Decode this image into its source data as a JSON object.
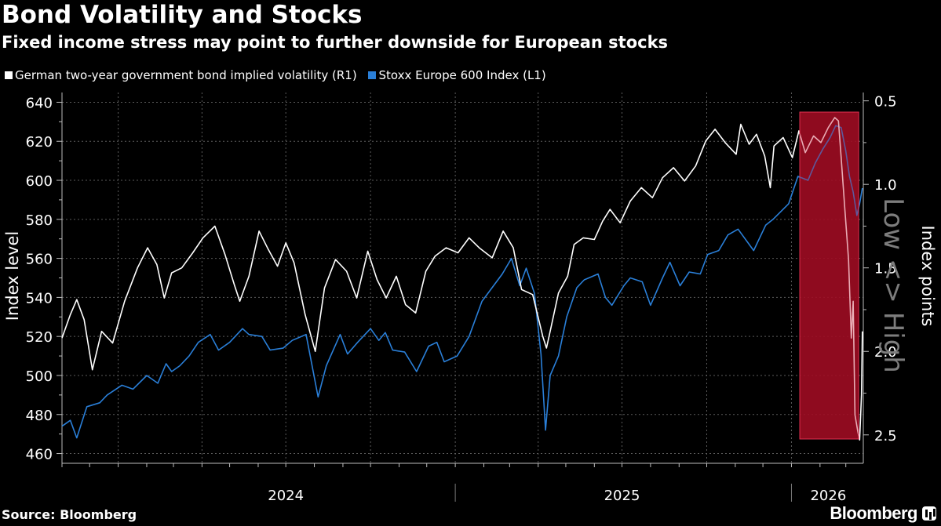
{
  "header": {
    "title": "Bond Volatility and Stocks",
    "subtitle": "Fixed income stress may point to further downside for European stocks"
  },
  "legend": {
    "items": [
      {
        "label": "German two-year government bond implied volatility (R1)",
        "color": "#ffffff"
      },
      {
        "label": "Stoxx Europe 600 Index (L1)",
        "color": "#2a7fd8"
      }
    ]
  },
  "footer": {
    "source": "Source: Bloomberg",
    "brand": "Bloomberg"
  },
  "chart_data": {
    "type": "line",
    "y_left": {
      "label": "Index level",
      "range": [
        455,
        645
      ],
      "ticks": [
        460,
        480,
        500,
        520,
        540,
        560,
        580,
        600,
        620,
        640
      ]
    },
    "y_right": {
      "label": "Index points",
      "annotation": "Low <> High",
      "inverted": true,
      "range": [
        0.45,
        2.67
      ],
      "ticks": [
        0.5,
        1.0,
        1.5,
        2.0,
        2.5
      ],
      "tick_labels": [
        "0.5",
        "1.0",
        "1.5",
        "2.0",
        "2.5"
      ]
    },
    "x": {
      "range": [
        "2023-11-01",
        "2026-03-20"
      ],
      "year_labels": [
        "2024",
        "2025",
        "2026"
      ],
      "year_label_positions": [
        "2024-07-01",
        "2025-07-01",
        "2026-02-10"
      ],
      "year_boundaries": [
        "2025-01-01",
        "2026-01-01"
      ]
    },
    "grid": true,
    "highlight": {
      "start": "2026-01-10",
      "end": "2026-03-15",
      "color": "#8b0a1e"
    },
    "series": [
      {
        "name": "Stoxx Europe 600 Index (L1)",
        "axis": "left",
        "color": "#2a7fd8",
        "points": [
          [
            "2023-11-01",
            474
          ],
          [
            "2023-11-10",
            477
          ],
          [
            "2023-11-17",
            468
          ],
          [
            "2023-11-28",
            484
          ],
          [
            "2023-12-12",
            486
          ],
          [
            "2023-12-20",
            490
          ],
          [
            "2024-01-05",
            495
          ],
          [
            "2024-01-17",
            493
          ],
          [
            "2024-02-01",
            500
          ],
          [
            "2024-02-13",
            496
          ],
          [
            "2024-02-22",
            506
          ],
          [
            "2024-02-28",
            502
          ],
          [
            "2024-03-08",
            505
          ],
          [
            "2024-03-18",
            510
          ],
          [
            "2024-03-28",
            517
          ],
          [
            "2024-04-10",
            521
          ],
          [
            "2024-04-19",
            513
          ],
          [
            "2024-05-01",
            517
          ],
          [
            "2024-05-15",
            524
          ],
          [
            "2024-05-22",
            521
          ],
          [
            "2024-06-05",
            520
          ],
          [
            "2024-06-14",
            513
          ],
          [
            "2024-06-28",
            514
          ],
          [
            "2024-07-08",
            518
          ],
          [
            "2024-07-23",
            521
          ],
          [
            "2024-08-05",
            489
          ],
          [
            "2024-08-14",
            505
          ],
          [
            "2024-08-29",
            521
          ],
          [
            "2024-09-06",
            511
          ],
          [
            "2024-09-17",
            517
          ],
          [
            "2024-10-01",
            524
          ],
          [
            "2024-10-10",
            518
          ],
          [
            "2024-10-17",
            522
          ],
          [
            "2024-10-25",
            513
          ],
          [
            "2024-11-07",
            512
          ],
          [
            "2024-11-20",
            502
          ],
          [
            "2024-12-03",
            515
          ],
          [
            "2024-12-12",
            517
          ],
          [
            "2024-12-20",
            507
          ],
          [
            "2025-01-03",
            510
          ],
          [
            "2025-01-16",
            520
          ],
          [
            "2025-01-30",
            538
          ],
          [
            "2025-02-10",
            545
          ],
          [
            "2025-02-21",
            552
          ],
          [
            "2025-03-03",
            560
          ],
          [
            "2025-03-12",
            546
          ],
          [
            "2025-03-19",
            555
          ],
          [
            "2025-03-28",
            542
          ],
          [
            "2025-04-04",
            511
          ],
          [
            "2025-04-09",
            472
          ],
          [
            "2025-04-14",
            500
          ],
          [
            "2025-04-23",
            510
          ],
          [
            "2025-05-02",
            530
          ],
          [
            "2025-05-13",
            545
          ],
          [
            "2025-05-21",
            549
          ],
          [
            "2025-06-05",
            552
          ],
          [
            "2025-06-13",
            540
          ],
          [
            "2025-06-20",
            536
          ],
          [
            "2025-07-03",
            546
          ],
          [
            "2025-07-10",
            550
          ],
          [
            "2025-07-23",
            548
          ],
          [
            "2025-08-01",
            536
          ],
          [
            "2025-08-14",
            550
          ],
          [
            "2025-08-22",
            558
          ],
          [
            "2025-09-02",
            546
          ],
          [
            "2025-09-12",
            553
          ],
          [
            "2025-09-24",
            552
          ],
          [
            "2025-10-02",
            562
          ],
          [
            "2025-10-14",
            564
          ],
          [
            "2025-10-24",
            572
          ],
          [
            "2025-11-04",
            575
          ],
          [
            "2025-11-21",
            564
          ],
          [
            "2025-12-04",
            577
          ],
          [
            "2025-12-12",
            580
          ],
          [
            "2025-12-29",
            588
          ],
          [
            "2026-01-08",
            602
          ],
          [
            "2026-01-19",
            600
          ],
          [
            "2026-01-27",
            609
          ],
          [
            "2026-02-04",
            616
          ],
          [
            "2026-02-12",
            622
          ],
          [
            "2026-02-18",
            628
          ],
          [
            "2026-02-24",
            627
          ],
          [
            "2026-03-01",
            615
          ],
          [
            "2026-03-05",
            602
          ],
          [
            "2026-03-09",
            594
          ],
          [
            "2026-03-13",
            582
          ],
          [
            "2026-03-16",
            588
          ],
          [
            "2026-03-19",
            596
          ]
        ]
      },
      {
        "name": "German two-year government bond implied volatility (R1)",
        "axis": "right",
        "color": "#ffffff",
        "points": [
          [
            "2023-11-01",
            1.92
          ],
          [
            "2023-11-10",
            1.78
          ],
          [
            "2023-11-17",
            1.69
          ],
          [
            "2023-11-25",
            1.81
          ],
          [
            "2023-12-04",
            2.11
          ],
          [
            "2023-12-14",
            1.88
          ],
          [
            "2023-12-26",
            1.95
          ],
          [
            "2024-01-08",
            1.7
          ],
          [
            "2024-01-22",
            1.5
          ],
          [
            "2024-02-02",
            1.38
          ],
          [
            "2024-02-12",
            1.48
          ],
          [
            "2024-02-20",
            1.68
          ],
          [
            "2024-02-28",
            1.53
          ],
          [
            "2024-03-10",
            1.5
          ],
          [
            "2024-03-22",
            1.41
          ],
          [
            "2024-04-02",
            1.32
          ],
          [
            "2024-04-15",
            1.25
          ],
          [
            "2024-04-26",
            1.42
          ],
          [
            "2024-05-06",
            1.6
          ],
          [
            "2024-05-12",
            1.7
          ],
          [
            "2024-05-22",
            1.55
          ],
          [
            "2024-06-02",
            1.28
          ],
          [
            "2024-06-12",
            1.39
          ],
          [
            "2024-06-22",
            1.49
          ],
          [
            "2024-07-01",
            1.35
          ],
          [
            "2024-07-10",
            1.47
          ],
          [
            "2024-07-22",
            1.78
          ],
          [
            "2024-08-02",
            2.0
          ],
          [
            "2024-08-12",
            1.62
          ],
          [
            "2024-08-24",
            1.45
          ],
          [
            "2024-09-05",
            1.52
          ],
          [
            "2024-09-16",
            1.68
          ],
          [
            "2024-09-28",
            1.4
          ],
          [
            "2024-10-08",
            1.57
          ],
          [
            "2024-10-18",
            1.68
          ],
          [
            "2024-10-29",
            1.55
          ],
          [
            "2024-11-08",
            1.72
          ],
          [
            "2024-11-19",
            1.77
          ],
          [
            "2024-11-30",
            1.52
          ],
          [
            "2024-12-10",
            1.43
          ],
          [
            "2024-12-22",
            1.38
          ],
          [
            "2025-01-04",
            1.41
          ],
          [
            "2025-01-16",
            1.32
          ],
          [
            "2025-01-27",
            1.38
          ],
          [
            "2025-02-10",
            1.44
          ],
          [
            "2025-02-22",
            1.28
          ],
          [
            "2025-03-05",
            1.38
          ],
          [
            "2025-03-14",
            1.63
          ],
          [
            "2025-03-26",
            1.66
          ],
          [
            "2025-04-06",
            1.91
          ],
          [
            "2025-04-10",
            1.98
          ],
          [
            "2025-04-14",
            1.88
          ],
          [
            "2025-04-23",
            1.65
          ],
          [
            "2025-05-03",
            1.55
          ],
          [
            "2025-05-10",
            1.36
          ],
          [
            "2025-05-20",
            1.32
          ],
          [
            "2025-06-01",
            1.33
          ],
          [
            "2025-06-10",
            1.22
          ],
          [
            "2025-06-18",
            1.15
          ],
          [
            "2025-06-29",
            1.23
          ],
          [
            "2025-07-10",
            1.1
          ],
          [
            "2025-07-22",
            1.02
          ],
          [
            "2025-08-03",
            1.08
          ],
          [
            "2025-08-14",
            0.96
          ],
          [
            "2025-08-26",
            0.9
          ],
          [
            "2025-09-07",
            0.98
          ],
          [
            "2025-09-19",
            0.89
          ],
          [
            "2025-09-30",
            0.74
          ],
          [
            "2025-10-10",
            0.67
          ],
          [
            "2025-10-21",
            0.75
          ],
          [
            "2025-11-02",
            0.82
          ],
          [
            "2025-11-07",
            0.64
          ],
          [
            "2025-11-16",
            0.76
          ],
          [
            "2025-11-24",
            0.7
          ],
          [
            "2025-12-03",
            0.83
          ],
          [
            "2025-12-09",
            1.02
          ],
          [
            "2025-12-13",
            0.77
          ],
          [
            "2025-12-23",
            0.72
          ],
          [
            "2026-01-02",
            0.84
          ],
          [
            "2026-01-09",
            0.68
          ],
          [
            "2026-01-16",
            0.81
          ],
          [
            "2026-01-25",
            0.71
          ],
          [
            "2026-02-02",
            0.75
          ],
          [
            "2026-02-10",
            0.66
          ],
          [
            "2026-02-17",
            0.6
          ],
          [
            "2026-02-21",
            0.62
          ],
          [
            "2026-02-24",
            0.84
          ],
          [
            "2026-02-28",
            1.15
          ],
          [
            "2026-03-04",
            1.45
          ],
          [
            "2026-03-07",
            1.92
          ],
          [
            "2026-03-09",
            1.7
          ],
          [
            "2026-03-11",
            2.38
          ],
          [
            "2026-03-14",
            2.48
          ],
          [
            "2026-03-16",
            2.53
          ],
          [
            "2026-03-18",
            2.26
          ],
          [
            "2026-03-19",
            1.88
          ]
        ]
      }
    ]
  }
}
